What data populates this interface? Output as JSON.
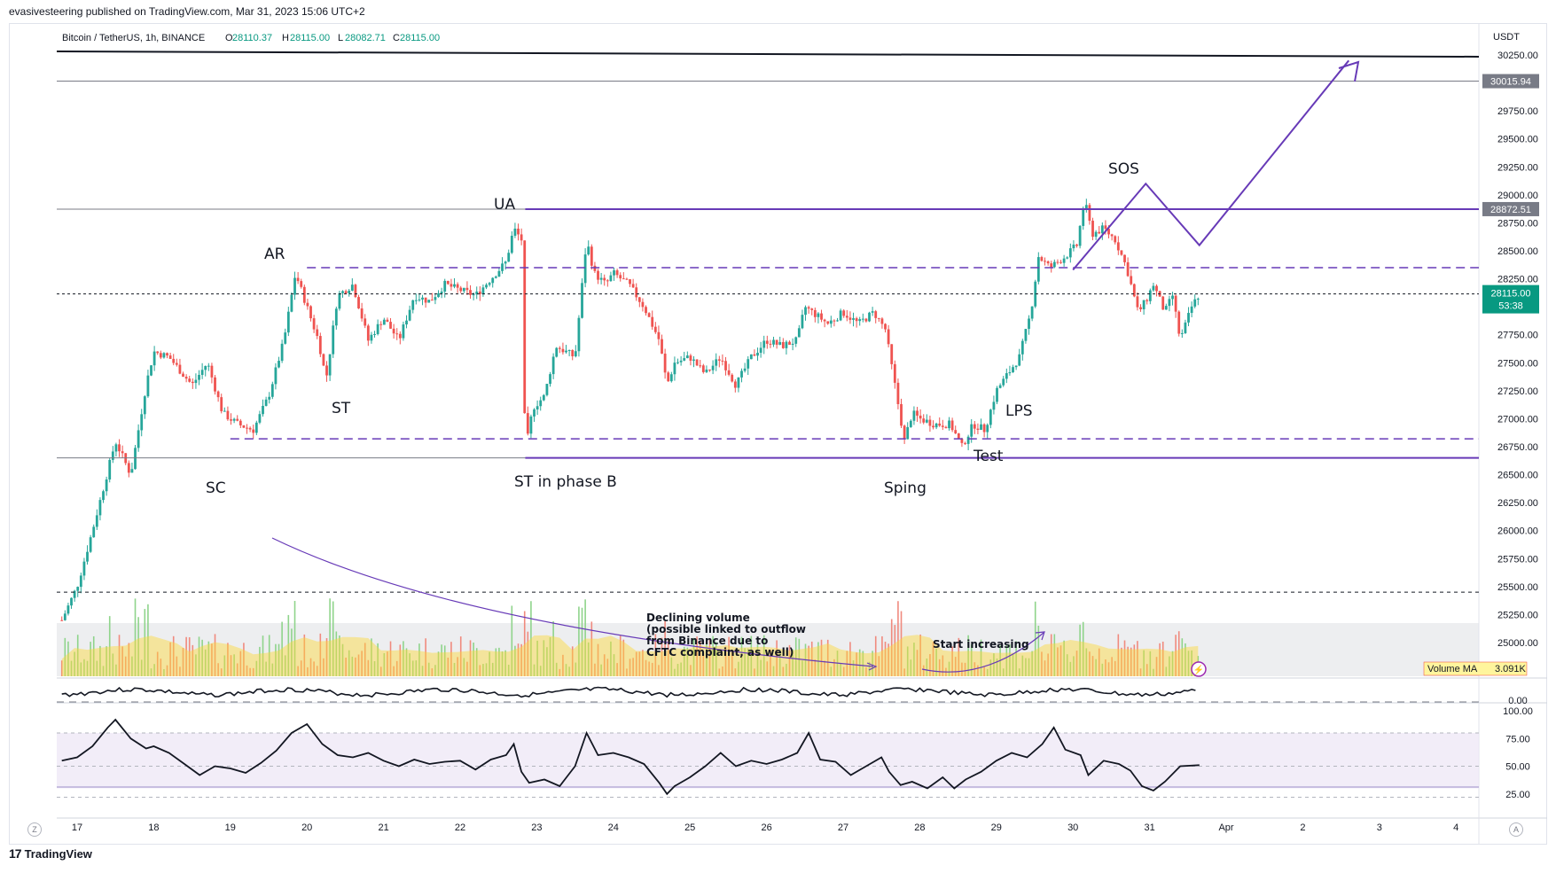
{
  "header": {
    "published": "evasivesteering published on TradingView.com, Mar 31, 2023 15:06 UTC+2",
    "symbol": "Bitcoin / TetherUS, 1h, BINANCE",
    "open_label": "O",
    "open": "28110.37",
    "high_label": "H",
    "high": "28115.00",
    "low_label": "L",
    "low": "28082.71",
    "close_label": "C",
    "close": "28115.00"
  },
  "footer": {
    "brand": "TradingView",
    "zoom_btn": "Z",
    "auto_btn": "A"
  },
  "colors": {
    "up": "#26a69a",
    "down": "#ef5350",
    "purple": "#673ab7",
    "price_badge": "#089981",
    "level_badge": "#787b86"
  },
  "annotations": {
    "ar": "AR",
    "st": "ST",
    "sc": "SC",
    "ua": "UA",
    "st_phase_b": "ST in phase B",
    "sping": "Sping",
    "test": "Test",
    "lps": "LPS",
    "sos": "SOS",
    "volume_note": [
      "Declining volume",
      "(possible linked to outflow",
      "from Binance due to",
      "CFTC complaint, as well)"
    ],
    "start_increasing": "Start increasing"
  },
  "chart_data": [
    {
      "type": "candlestick",
      "symbol": "Bitcoin / TetherUS",
      "interval": "1h",
      "exchange": "BINANCE",
      "y_axis_label": "USDT",
      "ylim": [
        25150,
        30320
      ],
      "y_ticks": [
        "30250.00",
        "30000.00",
        "29750.00",
        "29500.00",
        "29250.00",
        "29000.00",
        "28750.00",
        "28500.00",
        "28250.00",
        "28000.00",
        "27750.00",
        "27500.00",
        "27250.00",
        "27000.00",
        "26750.00",
        "26500.00",
        "26250.00",
        "26000.00",
        "25750.00",
        "25500.00",
        "25250.00",
        "25000.00"
      ],
      "x_ticks": [
        "17",
        "18",
        "19",
        "20",
        "21",
        "22",
        "23",
        "24",
        "25",
        "26",
        "27",
        "28",
        "29",
        "30",
        "31",
        "Apr",
        "2",
        "3",
        "4"
      ],
      "last_price": "28115.00",
      "countdown": "53:38",
      "price_levels": [
        "30015.94",
        "28872.51"
      ],
      "close_path": [
        [
          16.8,
          25200
        ],
        [
          17.0,
          25500
        ],
        [
          17.2,
          26000
        ],
        [
          17.5,
          26800
        ],
        [
          17.7,
          26500
        ],
        [
          17.9,
          27300
        ],
        [
          18.0,
          27600
        ],
        [
          18.2,
          27550
        ],
        [
          18.5,
          27300
        ],
        [
          18.7,
          27500
        ],
        [
          18.9,
          27050
        ],
        [
          19.1,
          26950
        ],
        [
          19.3,
          26900
        ],
        [
          19.5,
          27200
        ],
        [
          19.7,
          27700
        ],
        [
          19.85,
          28300
        ],
        [
          20.0,
          28000
        ],
        [
          20.15,
          27700
        ],
        [
          20.25,
          27350
        ],
        [
          20.4,
          28100
        ],
        [
          20.6,
          28200
        ],
        [
          20.8,
          27700
        ],
        [
          21.0,
          27900
        ],
        [
          21.2,
          27700
        ],
        [
          21.4,
          28100
        ],
        [
          21.6,
          28050
        ],
        [
          21.8,
          28200
        ],
        [
          22.0,
          28150
        ],
        [
          22.2,
          28100
        ],
        [
          22.4,
          28250
        ],
        [
          22.6,
          28400
        ],
        [
          22.7,
          28700
        ],
        [
          22.8,
          28600
        ],
        [
          22.85,
          26700
        ],
        [
          22.95,
          27100
        ],
        [
          23.1,
          27200
        ],
        [
          23.25,
          27650
        ],
        [
          23.5,
          27550
        ],
        [
          23.65,
          28600
        ],
        [
          23.75,
          28300
        ],
        [
          23.9,
          28200
        ],
        [
          24.0,
          28300
        ],
        [
          24.2,
          28200
        ],
        [
          24.4,
          28000
        ],
        [
          24.6,
          27700
        ],
        [
          24.7,
          27300
        ],
        [
          24.8,
          27500
        ],
        [
          25.0,
          27550
        ],
        [
          25.2,
          27400
        ],
        [
          25.4,
          27550
        ],
        [
          25.6,
          27300
        ],
        [
          25.8,
          27550
        ],
        [
          26.0,
          27700
        ],
        [
          26.2,
          27650
        ],
        [
          26.4,
          27700
        ],
        [
          26.5,
          28000
        ],
        [
          26.6,
          27950
        ],
        [
          26.8,
          27850
        ],
        [
          27.0,
          27950
        ],
        [
          27.2,
          27850
        ],
        [
          27.4,
          27950
        ],
        [
          27.55,
          27800
        ],
        [
          27.7,
          27200
        ],
        [
          27.8,
          26800
        ],
        [
          27.9,
          27050
        ],
        [
          28.0,
          27000
        ],
        [
          28.2,
          26950
        ],
        [
          28.4,
          26950
        ],
        [
          28.55,
          26750
        ],
        [
          28.7,
          26950
        ],
        [
          28.85,
          26900
        ],
        [
          29.0,
          27250
        ],
        [
          29.1,
          27350
        ],
        [
          29.3,
          27550
        ],
        [
          29.45,
          27950
        ],
        [
          29.55,
          28450
        ],
        [
          29.7,
          28350
        ],
        [
          29.9,
          28450
        ],
        [
          30.05,
          28550
        ],
        [
          30.15,
          28950
        ],
        [
          30.25,
          28650
        ],
        [
          30.4,
          28700
        ],
        [
          30.55,
          28600
        ],
        [
          30.7,
          28350
        ],
        [
          30.85,
          27950
        ],
        [
          30.95,
          28050
        ],
        [
          31.05,
          28200
        ],
        [
          31.2,
          27950
        ],
        [
          31.3,
          28100
        ],
        [
          31.4,
          27700
        ],
        [
          31.55,
          28000
        ],
        [
          31.65,
          28115
        ]
      ]
    },
    {
      "type": "bar",
      "name": "Volume MA",
      "value_label": "3.091K"
    },
    {
      "type": "line",
      "y_ticks": [
        "0.00"
      ]
    },
    {
      "type": "line",
      "ylim": [
        20,
        100
      ],
      "y_ticks": [
        "100.00",
        "75.00",
        "50.00",
        "25.00"
      ],
      "band": [
        30,
        80
      ],
      "path": [
        [
          16.8,
          55
        ],
        [
          17.0,
          58
        ],
        [
          17.2,
          68
        ],
        [
          17.4,
          85
        ],
        [
          17.5,
          92
        ],
        [
          17.7,
          75
        ],
        [
          17.9,
          66
        ],
        [
          18.0,
          68
        ],
        [
          18.2,
          62
        ],
        [
          18.4,
          52
        ],
        [
          18.6,
          42
        ],
        [
          18.8,
          50
        ],
        [
          19.0,
          48
        ],
        [
          19.2,
          44
        ],
        [
          19.4,
          53
        ],
        [
          19.6,
          64
        ],
        [
          19.8,
          80
        ],
        [
          20.0,
          88
        ],
        [
          20.2,
          70
        ],
        [
          20.4,
          60
        ],
        [
          20.6,
          58
        ],
        [
          20.8,
          62
        ],
        [
          21.0,
          55
        ],
        [
          21.2,
          50
        ],
        [
          21.4,
          56
        ],
        [
          21.6,
          52
        ],
        [
          21.8,
          54
        ],
        [
          22.0,
          55
        ],
        [
          22.2,
          47
        ],
        [
          22.4,
          56
        ],
        [
          22.6,
          60
        ],
        [
          22.7,
          70
        ],
        [
          22.8,
          45
        ],
        [
          22.9,
          35
        ],
        [
          23.1,
          38
        ],
        [
          23.3,
          32
        ],
        [
          23.5,
          50
        ],
        [
          23.65,
          80
        ],
        [
          23.8,
          60
        ],
        [
          24.0,
          62
        ],
        [
          24.2,
          58
        ],
        [
          24.4,
          52
        ],
        [
          24.6,
          35
        ],
        [
          24.7,
          25
        ],
        [
          24.8,
          32
        ],
        [
          25.0,
          40
        ],
        [
          25.2,
          50
        ],
        [
          25.4,
          62
        ],
        [
          25.6,
          50
        ],
        [
          25.8,
          55
        ],
        [
          26.0,
          52
        ],
        [
          26.2,
          56
        ],
        [
          26.4,
          62
        ],
        [
          26.55,
          80
        ],
        [
          26.7,
          56
        ],
        [
          26.9,
          54
        ],
        [
          27.1,
          42
        ],
        [
          27.3,
          50
        ],
        [
          27.5,
          58
        ],
        [
          27.6,
          45
        ],
        [
          27.75,
          33
        ],
        [
          27.9,
          36
        ],
        [
          28.1,
          30
        ],
        [
          28.3,
          40
        ],
        [
          28.45,
          30
        ],
        [
          28.6,
          38
        ],
        [
          28.8,
          45
        ],
        [
          29.0,
          55
        ],
        [
          29.2,
          62
        ],
        [
          29.4,
          58
        ],
        [
          29.6,
          70
        ],
        [
          29.75,
          85
        ],
        [
          29.9,
          65
        ],
        [
          30.1,
          60
        ],
        [
          30.2,
          42
        ],
        [
          30.4,
          55
        ],
        [
          30.6,
          52
        ],
        [
          30.75,
          46
        ],
        [
          30.9,
          32
        ],
        [
          31.05,
          28
        ],
        [
          31.2,
          36
        ],
        [
          31.4,
          50
        ],
        [
          31.65,
          51
        ]
      ]
    }
  ]
}
